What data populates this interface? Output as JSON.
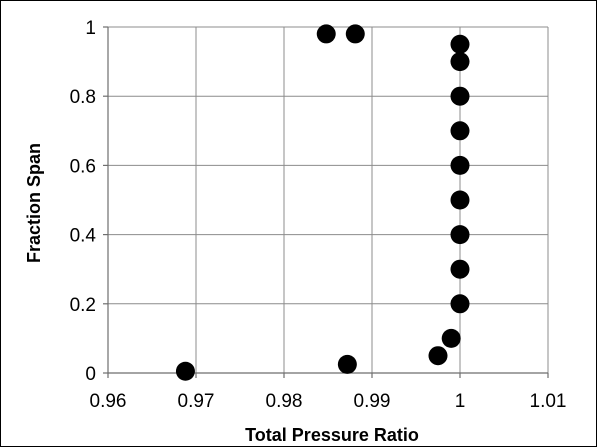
{
  "chart_data": {
    "type": "scatter",
    "title": "",
    "xlabel": "Total Pressure Ratio",
    "ylabel": "Fraction Span",
    "xlim": [
      0.96,
      1.01
    ],
    "ylim": [
      0,
      1
    ],
    "xticks": [
      0.96,
      0.97,
      0.98,
      0.99,
      1,
      1.01
    ],
    "xtick_labels": [
      "0.96",
      "0.97",
      "0.98",
      "0.99",
      "1",
      "1.01"
    ],
    "yticks": [
      0,
      0.2,
      0.4,
      0.6,
      0.8,
      1
    ],
    "ytick_labels": [
      "0",
      "0.2",
      "0.4",
      "0.6",
      "0.8",
      "1"
    ],
    "grid": true,
    "legend": "none",
    "marker_color": "#000000",
    "series": [
      {
        "points": [
          {
            "x": 0.9688,
            "y": 0.005
          },
          {
            "x": 0.9872,
            "y": 0.025
          },
          {
            "x": 0.9975,
            "y": 0.05
          },
          {
            "x": 0.999,
            "y": 0.1
          },
          {
            "x": 1.0,
            "y": 0.2
          },
          {
            "x": 1.0,
            "y": 0.3
          },
          {
            "x": 1.0,
            "y": 0.4
          },
          {
            "x": 1.0,
            "y": 0.5
          },
          {
            "x": 1.0,
            "y": 0.6
          },
          {
            "x": 1.0,
            "y": 0.7
          },
          {
            "x": 1.0,
            "y": 0.8
          },
          {
            "x": 1.0,
            "y": 0.9
          },
          {
            "x": 1.0,
            "y": 0.95
          },
          {
            "x": 0.9848,
            "y": 0.98
          },
          {
            "x": 0.9881,
            "y": 0.98
          }
        ]
      }
    ]
  }
}
